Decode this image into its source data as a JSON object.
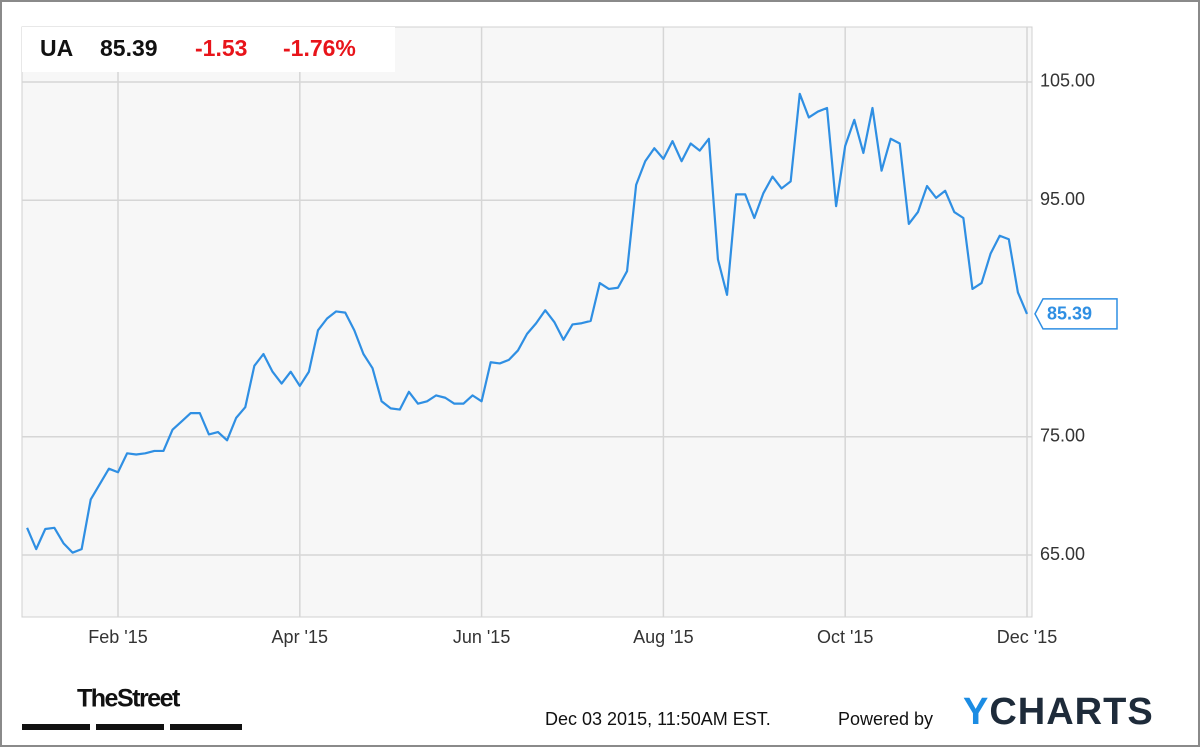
{
  "chart_data": {
    "type": "line",
    "ticker": "UA",
    "change": -1.53,
    "change_percent": "-1.76%",
    "color": "#2f8fe3",
    "grid": true,
    "categories": [
      null,
      null,
      null,
      null,
      null,
      null,
      null,
      null,
      null,
      null,
      "Feb '15",
      null,
      null,
      null,
      null,
      null,
      null,
      null,
      null,
      null,
      null,
      null,
      null,
      null,
      null,
      null,
      null,
      null,
      null,
      null,
      "Apr '15",
      null,
      null,
      null,
      null,
      null,
      null,
      null,
      null,
      null,
      null,
      null,
      null,
      null,
      null,
      null,
      null,
      null,
      null,
      null,
      "Jun '15",
      null,
      null,
      null,
      null,
      null,
      null,
      null,
      null,
      null,
      null,
      null,
      null,
      null,
      null,
      null,
      null,
      null,
      null,
      null,
      "Aug '15",
      null,
      null,
      null,
      null,
      null,
      null,
      null,
      null,
      null,
      null,
      null,
      null,
      null,
      null,
      null,
      null,
      null,
      null,
      null,
      "Oct '15",
      null,
      null,
      null,
      null,
      null,
      null,
      null,
      null,
      null,
      null,
      null,
      null,
      null,
      null,
      null,
      null,
      null,
      null,
      null,
      "Dec '15"
    ],
    "values": [
      67.3,
      65.5,
      67.2,
      67.3,
      66,
      65.2,
      65.5,
      69.7,
      71,
      72.3,
      72,
      73.6,
      73.5,
      73.6,
      73.8,
      73.8,
      75.6,
      76.3,
      77,
      77,
      75.2,
      75.4,
      74.7,
      76.6,
      77.5,
      81,
      82,
      80.5,
      79.5,
      80.5,
      79.3,
      80.5,
      84,
      85,
      85.6,
      85.5,
      84,
      82,
      80.8,
      78,
      77.4,
      77.3,
      78.8,
      77.8,
      78,
      78.5,
      78.3,
      77.8,
      77.8,
      78.5,
      78,
      81.3,
      81.2,
      81.5,
      82.3,
      83.7,
      84.6,
      85.7,
      84.7,
      83.2,
      84.5,
      84.6,
      84.8,
      88,
      87.5,
      87.6,
      89,
      96.3,
      98.3,
      99.4,
      98.5,
      100,
      98.3,
      99.8,
      99.2,
      100.2,
      90,
      87,
      95.5,
      95.5,
      93.5,
      95.6,
      97,
      96,
      96.6,
      104,
      102,
      102.5,
      102.8,
      94.5,
      99.6,
      101.8,
      99,
      102.8,
      97.5,
      100.2,
      99.8,
      93,
      94,
      96.2,
      95.2,
      95.8,
      94,
      93.5,
      87.5,
      88,
      90.5,
      92,
      91.7,
      87.2,
      85.39
    ],
    "ylim": [
      59.76,
      109.65
    ],
    "yticks": [
      {
        "value": 65,
        "label": "65.00"
      },
      {
        "value": 75,
        "label": "75.00"
      },
      {
        "value": 95,
        "label": "95.00"
      },
      {
        "value": 105,
        "label": "105.00"
      }
    ],
    "source": "TheStreet",
    "timestamp": "Dec 03 2015, 11:50AM EST.",
    "credit": "Powered by",
    "brand": "YCHARTS"
  }
}
